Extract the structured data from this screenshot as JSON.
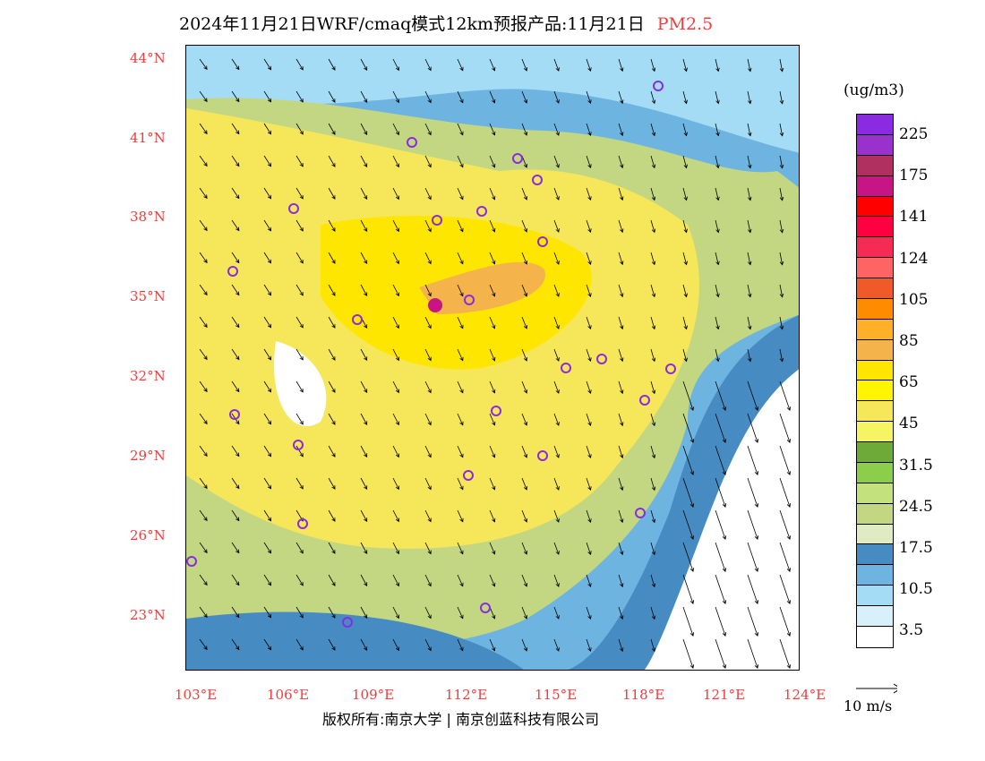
{
  "title": {
    "text": "2024年11月21日WRF/cmaq模式12km预报产品:11月21日",
    "pollutant": "PM2.5"
  },
  "lat_labels": [
    "44°N",
    "41°N",
    "38°N",
    "35°N",
    "32°N",
    "29°N",
    "26°N",
    "23°N"
  ],
  "lon_labels": [
    "103°E",
    "106°E",
    "109°E",
    "112°E",
    "115°E",
    "118°E",
    "121°E",
    "124°E"
  ],
  "legend": {
    "unit": "(ug/m3)",
    "colors": [
      "#8a2be2",
      "#9932cc",
      "#b03060",
      "#c71585",
      "#ff0000",
      "#ff0040",
      "#f52a55",
      "#ff6464",
      "#f05a28",
      "#ff8c00",
      "#ffaf28",
      "#f5b44b",
      "#ffe600",
      "#fff500",
      "#f5e65a",
      "#f5f564",
      "#6eaa37",
      "#8ccd4b",
      "#c3e17d",
      "#c3d782",
      "#e1ebc3",
      "#468cc3",
      "#6eb4e1",
      "#a5dcf5",
      "#d7f0fa",
      "#ffffff"
    ],
    "labels": [
      "225",
      "175",
      "141",
      "124",
      "105",
      "85",
      "65",
      "45",
      "31.5",
      "24.5",
      "17.5",
      "10.5",
      "3.5"
    ]
  },
  "wind_reference": "10 m/s",
  "footer": {
    "copyright": "版权所有:南京大学",
    "company": "南京创蓝科技有限公司"
  }
}
